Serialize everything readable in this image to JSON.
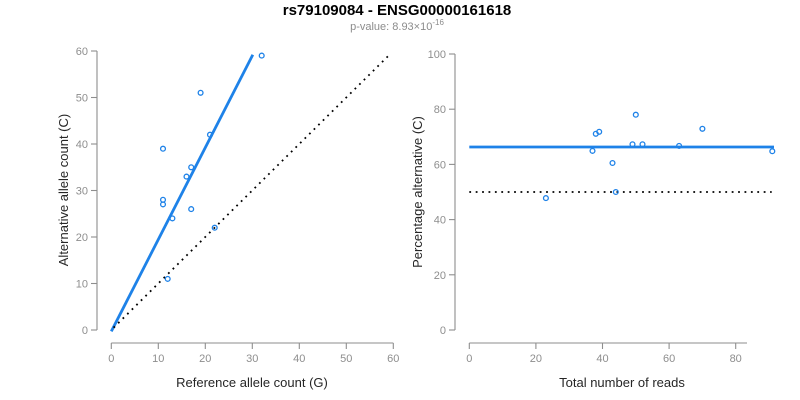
{
  "header": {
    "title": "rs79109084 - ENSG00000161618",
    "pvalue": "p-value: 8.93×10",
    "pvalue_exponent": "-16"
  },
  "colors": {
    "accent_blue": "#1E82E8",
    "axis_gray": "#8E8E8E",
    "subtitle_gray": "#8C8C8C",
    "title_black": "#000000",
    "dotted_line_black": "#000000"
  },
  "chart_data": [
    {
      "type": "scatter",
      "panel": "left",
      "xlabel": "Reference allele count (G)",
      "ylabel": "Alternative allele count (C)",
      "xlim": [
        0,
        60
      ],
      "ylim": [
        0,
        60
      ],
      "xticks": [
        0,
        10,
        20,
        30,
        40,
        50,
        60
      ],
      "yticks": [
        0,
        10,
        20,
        30,
        40,
        50,
        60
      ],
      "grid": false,
      "points": [
        [
          32,
          59
        ],
        [
          19,
          51
        ],
        [
          21,
          42
        ],
        [
          11,
          39
        ],
        [
          17,
          35
        ],
        [
          16,
          33
        ],
        [
          11,
          28
        ],
        [
          11,
          27
        ],
        [
          17,
          26
        ],
        [
          13,
          24
        ],
        [
          22,
          22
        ],
        [
          12,
          11
        ]
      ],
      "lines": [
        {
          "name": "fit",
          "style": "solid-blue",
          "from": [
            0,
            -0.3
          ],
          "to": [
            30.1,
            59.2
          ]
        },
        {
          "name": "identity",
          "style": "dotted-black",
          "from": [
            0.5,
            0.5
          ],
          "to": [
            59,
            59
          ]
        }
      ]
    },
    {
      "type": "scatter",
      "panel": "right",
      "xlabel": "Total number of reads",
      "ylabel": "Percentage alternative (C)",
      "xlim": [
        0,
        91.5
      ],
      "ylim": [
        0,
        100
      ],
      "xticks": [
        0,
        20,
        40,
        60,
        80
      ],
      "yticks": [
        0,
        20,
        40,
        60,
        80,
        100
      ],
      "grid": false,
      "points": [
        [
          23,
          47.8
        ],
        [
          37,
          64.9
        ],
        [
          38,
          71.1
        ],
        [
          39,
          71.8
        ],
        [
          43,
          60.5
        ],
        [
          44,
          50
        ],
        [
          49,
          67.3
        ],
        [
          50,
          78
        ],
        [
          52,
          67.3
        ],
        [
          63,
          66.7
        ],
        [
          70,
          72.9
        ],
        [
          91,
          64.8
        ]
      ],
      "lines": [
        {
          "name": "mean",
          "style": "solid-blue",
          "from": [
            0,
            66.3
          ],
          "to": [
            91.5,
            66.3
          ]
        },
        {
          "name": "null",
          "style": "dotted-black",
          "from": [
            0,
            50
          ],
          "to": [
            90.8,
            50
          ]
        }
      ]
    }
  ]
}
